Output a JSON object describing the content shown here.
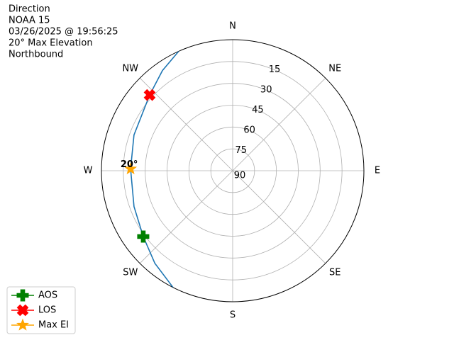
{
  "chart_data": {
    "type": "polar",
    "title_lines": [
      "Direction",
      "NOAA 15",
      "03/26/2025 @ 19:56:25",
      "20° Max Elevation",
      "Northbound"
    ],
    "rlim": [
      90,
      0
    ],
    "rticks": [
      15,
      30,
      45,
      60,
      75,
      90
    ],
    "thetaticks": [
      {
        "value": 0,
        "label": "N"
      },
      {
        "value": 45,
        "label": "NE"
      },
      {
        "value": 90,
        "label": "E"
      },
      {
        "value": 135,
        "label": "SE"
      },
      {
        "value": 180,
        "label": "S"
      },
      {
        "value": 225,
        "label": "SW"
      },
      {
        "value": 270,
        "label": "W"
      },
      {
        "value": 315,
        "label": "NW"
      }
    ],
    "grid": true,
    "track": {
      "color": "#1f77b4",
      "azimuth": [
        207,
        220,
        233.6,
        250,
        271,
        290,
        312.4,
        325,
        335.7
      ],
      "elevation": [
        0,
        7,
        13.8,
        18,
        20,
        18,
        12.9,
        6,
        0
      ]
    },
    "markers": [
      {
        "name": "AOS",
        "color": "green",
        "marker": "plus",
        "azimuth": 233.6,
        "elevation": 13.8
      },
      {
        "name": "LOS",
        "color": "red",
        "marker": "x",
        "azimuth": 312.4,
        "elevation": 12.9
      },
      {
        "name": "Max El",
        "color": "orange",
        "marker": "star",
        "azimuth": 271,
        "elevation": 20
      }
    ],
    "annotation": "20°",
    "legend": "lower left"
  }
}
